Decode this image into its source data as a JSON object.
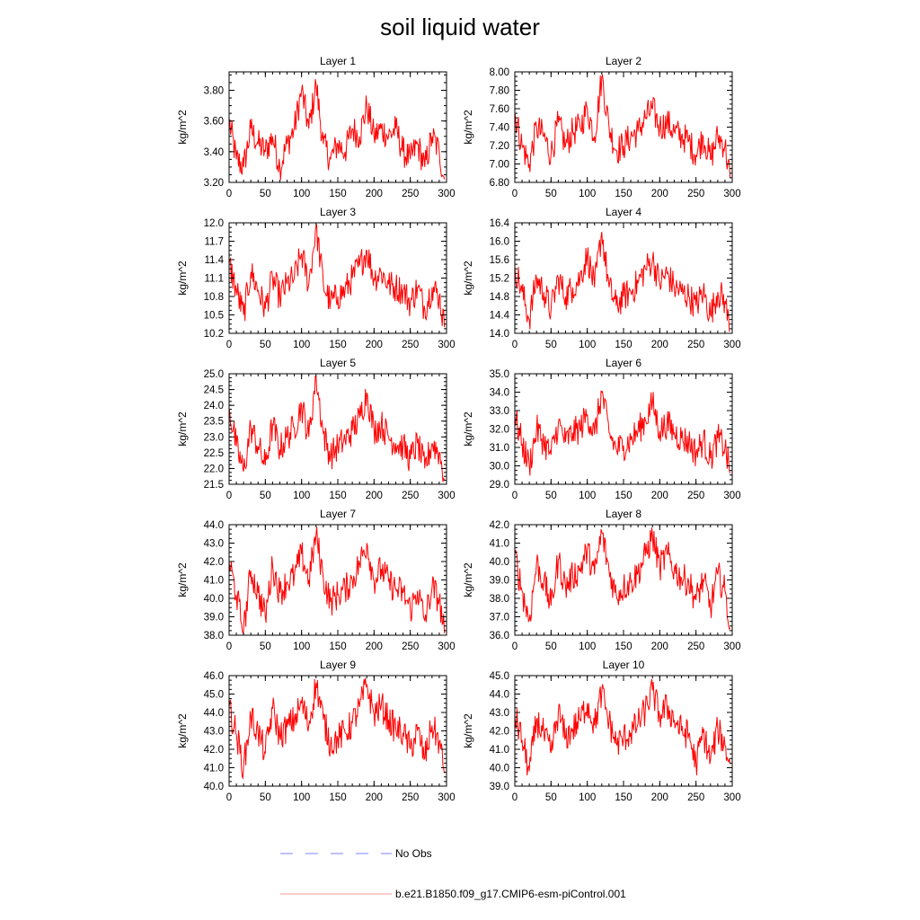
{
  "figure": {
    "title": "soil liquid water",
    "colors": {
      "model_line": "#ff0000",
      "obs_line": "#7f7fff",
      "axes": "#000000"
    }
  },
  "legend": {
    "location": "bottom",
    "entries": [
      {
        "label": "No Obs",
        "style": "dashed",
        "color": "#7f7fff"
      },
      {
        "label": "b.e21.B1850.f09_g17.CMIP6-esm-piControl.001",
        "style": "solid",
        "color": "#ff9999"
      }
    ]
  },
  "chart_data": [
    {
      "type": "line",
      "title": "Layer 1",
      "ylabel": "kg/m^2",
      "xlim": [
        0,
        300
      ],
      "xticks": [
        "0",
        "50",
        "100",
        "150",
        "200",
        "250",
        "300"
      ],
      "ylim": [
        3.2,
        3.92
      ],
      "yticks": [
        "3.20",
        "3.40",
        "3.60",
        "3.80"
      ],
      "ytick_values": [
        3.2,
        3.4,
        3.6,
        3.8
      ],
      "series": [
        {
          "name": "b.e21.B1850.f09_g17.CMIP6-esm-piControl.001",
          "color": "#ff0000",
          "x": [
            0,
            10,
            20,
            30,
            40,
            50,
            60,
            70,
            80,
            90,
            100,
            110,
            120,
            130,
            140,
            150,
            160,
            170,
            180,
            190,
            200,
            210,
            220,
            230,
            240,
            250,
            260,
            270,
            280,
            290,
            297
          ],
          "y": [
            3.6,
            3.35,
            3.3,
            3.55,
            3.45,
            3.4,
            3.5,
            3.3,
            3.45,
            3.55,
            3.8,
            3.55,
            3.84,
            3.45,
            3.35,
            3.45,
            3.4,
            3.55,
            3.5,
            3.7,
            3.5,
            3.55,
            3.5,
            3.55,
            3.4,
            3.35,
            3.45,
            3.3,
            3.5,
            3.4,
            3.22
          ]
        }
      ]
    },
    {
      "type": "line",
      "title": "Layer 2",
      "ylabel": "kg/m^2",
      "xlim": [
        0,
        300
      ],
      "xticks": [
        "0",
        "50",
        "100",
        "150",
        "200",
        "250",
        "300"
      ],
      "ylim": [
        6.8,
        8.0
      ],
      "yticks": [
        "6.80",
        "7.00",
        "7.20",
        "7.40",
        "7.60",
        "7.80",
        "8.00"
      ],
      "ytick_values": [
        6.8,
        7.0,
        7.2,
        7.4,
        7.6,
        7.8,
        8.0
      ],
      "series": [
        {
          "name": "b.e21.B1850.f09_g17.CMIP6-esm-piControl.001",
          "color": "#ff0000",
          "x": [
            0,
            10,
            20,
            30,
            40,
            50,
            60,
            70,
            80,
            90,
            100,
            110,
            120,
            130,
            140,
            150,
            160,
            170,
            180,
            190,
            200,
            210,
            220,
            230,
            240,
            250,
            260,
            270,
            280,
            290,
            297
          ],
          "y": [
            7.55,
            7.2,
            7.0,
            7.4,
            7.3,
            7.1,
            7.45,
            7.2,
            7.35,
            7.4,
            7.6,
            7.3,
            7.95,
            7.4,
            7.15,
            7.2,
            7.3,
            7.35,
            7.5,
            7.6,
            7.4,
            7.45,
            7.35,
            7.3,
            7.25,
            7.1,
            7.3,
            7.05,
            7.3,
            7.2,
            6.85
          ]
        }
      ]
    },
    {
      "type": "line",
      "title": "Layer 3",
      "ylabel": "kg/m^2",
      "xlim": [
        0,
        300
      ],
      "xticks": [
        "0",
        "50",
        "100",
        "150",
        "200",
        "250",
        "300"
      ],
      "ylim": [
        10.2,
        12.0
      ],
      "yticks": [
        "10.2",
        "10.5",
        "10.8",
        "11.1",
        "11.4",
        "11.7",
        "12.0"
      ],
      "ytick_values": [
        10.2,
        10.5,
        10.8,
        11.1,
        11.4,
        11.7,
        12.0
      ],
      "series": [
        {
          "name": "b.e21.B1850.f09_g17.CMIP6-esm-piControl.001",
          "color": "#ff0000",
          "x": [
            0,
            10,
            20,
            30,
            40,
            50,
            60,
            70,
            80,
            90,
            100,
            110,
            120,
            130,
            140,
            150,
            160,
            170,
            180,
            190,
            200,
            210,
            220,
            230,
            240,
            250,
            260,
            270,
            280,
            290,
            297
          ],
          "y": [
            11.35,
            10.9,
            10.5,
            11.2,
            10.9,
            10.6,
            11.1,
            10.8,
            11.0,
            11.1,
            11.5,
            11.0,
            11.95,
            11.0,
            10.7,
            10.8,
            10.9,
            11.1,
            11.3,
            11.55,
            11.1,
            11.2,
            11.0,
            10.95,
            10.9,
            10.7,
            10.95,
            10.6,
            10.95,
            10.8,
            10.3
          ]
        }
      ]
    },
    {
      "type": "line",
      "title": "Layer 4",
      "ylabel": "kg/m^2",
      "xlim": [
        0,
        300
      ],
      "xticks": [
        "0",
        "50",
        "100",
        "150",
        "200",
        "250",
        "300"
      ],
      "ylim": [
        14.0,
        16.4
      ],
      "yticks": [
        "14.0",
        "14.4",
        "14.8",
        "15.2",
        "15.6",
        "16.0",
        "16.4"
      ],
      "ytick_values": [
        14.0,
        14.4,
        14.8,
        15.2,
        15.6,
        16.0,
        16.4
      ],
      "series": [
        {
          "name": "b.e21.B1850.f09_g17.CMIP6-esm-piControl.001",
          "color": "#ff0000",
          "x": [
            0,
            10,
            20,
            30,
            40,
            50,
            60,
            70,
            80,
            90,
            100,
            110,
            120,
            130,
            140,
            150,
            160,
            170,
            180,
            190,
            200,
            210,
            220,
            230,
            240,
            250,
            260,
            270,
            280,
            290,
            297
          ],
          "y": [
            15.45,
            14.9,
            14.3,
            15.2,
            14.9,
            14.5,
            15.2,
            14.8,
            15.0,
            15.2,
            15.7,
            15.0,
            16.2,
            15.0,
            14.6,
            14.8,
            14.9,
            15.1,
            15.4,
            15.6,
            15.1,
            15.3,
            15.0,
            14.9,
            14.8,
            14.6,
            14.9,
            14.4,
            14.9,
            14.7,
            14.05
          ]
        }
      ]
    },
    {
      "type": "line",
      "title": "Layer 5",
      "ylabel": "kg/m^2",
      "xlim": [
        0,
        300
      ],
      "xticks": [
        "0",
        "50",
        "100",
        "150",
        "200",
        "250",
        "300"
      ],
      "ylim": [
        21.5,
        25.0
      ],
      "yticks": [
        "21.5",
        "22.0",
        "22.5",
        "23.0",
        "23.5",
        "24.0",
        "24.5",
        "25.0"
      ],
      "ytick_values": [
        21.5,
        22.0,
        22.5,
        23.0,
        23.5,
        24.0,
        24.5,
        25.0
      ],
      "series": [
        {
          "name": "b.e21.B1850.f09_g17.CMIP6-esm-piControl.001",
          "color": "#ff0000",
          "x": [
            0,
            10,
            20,
            30,
            40,
            50,
            60,
            70,
            80,
            90,
            100,
            110,
            120,
            130,
            140,
            150,
            160,
            170,
            180,
            190,
            200,
            210,
            220,
            230,
            240,
            250,
            260,
            270,
            280,
            290,
            297
          ],
          "y": [
            23.9,
            22.7,
            21.9,
            23.3,
            22.7,
            22.1,
            23.4,
            22.6,
            23.0,
            23.3,
            24.0,
            23.0,
            24.95,
            23.1,
            22.4,
            22.7,
            22.9,
            23.2,
            23.6,
            24.4,
            23.2,
            23.4,
            23.0,
            22.8,
            22.7,
            22.3,
            22.8,
            22.0,
            22.8,
            22.5,
            21.65
          ]
        }
      ]
    },
    {
      "type": "line",
      "title": "Layer 6",
      "ylabel": "kg/m^2",
      "xlim": [
        0,
        300
      ],
      "xticks": [
        "0",
        "50",
        "100",
        "150",
        "200",
        "250",
        "300"
      ],
      "ylim": [
        29.0,
        35.0
      ],
      "yticks": [
        "29.0",
        "30.0",
        "31.0",
        "32.0",
        "33.0",
        "34.0",
        "35.0"
      ],
      "ytick_values": [
        29.0,
        30.0,
        31.0,
        32.0,
        33.0,
        34.0,
        35.0
      ],
      "series": [
        {
          "name": "b.e21.B1850.f09_g17.CMIP6-esm-piControl.001",
          "color": "#ff0000",
          "x": [
            0,
            10,
            20,
            30,
            40,
            50,
            60,
            70,
            80,
            90,
            100,
            110,
            120,
            130,
            140,
            150,
            160,
            170,
            180,
            190,
            200,
            210,
            220,
            230,
            240,
            250,
            260,
            270,
            280,
            290,
            297
          ],
          "y": [
            32.7,
            31.2,
            30.0,
            32.0,
            31.3,
            30.6,
            32.3,
            31.3,
            31.8,
            32.0,
            32.8,
            31.7,
            34.0,
            31.8,
            30.9,
            31.1,
            31.4,
            31.9,
            32.5,
            33.4,
            31.9,
            32.3,
            31.8,
            31.5,
            31.3,
            30.7,
            31.4,
            30.4,
            31.5,
            31.0,
            29.6
          ]
        }
      ]
    },
    {
      "type": "line",
      "title": "Layer 7",
      "ylabel": "kg/m^2",
      "xlim": [
        0,
        300
      ],
      "xticks": [
        "0",
        "50",
        "100",
        "150",
        "200",
        "250",
        "300"
      ],
      "ylim": [
        38.0,
        44.0
      ],
      "yticks": [
        "38.0",
        "39.0",
        "40.0",
        "41.0",
        "42.0",
        "43.0",
        "44.0"
      ],
      "ytick_values": [
        38.0,
        39.0,
        40.0,
        41.0,
        42.0,
        43.0,
        44.0
      ],
      "series": [
        {
          "name": "b.e21.B1850.f09_g17.CMIP6-esm-piControl.001",
          "color": "#ff0000",
          "x": [
            0,
            10,
            20,
            30,
            40,
            50,
            60,
            70,
            80,
            90,
            100,
            110,
            120,
            130,
            140,
            150,
            160,
            170,
            180,
            190,
            200,
            210,
            220,
            230,
            240,
            250,
            260,
            270,
            280,
            290,
            297
          ],
          "y": [
            42.0,
            40.2,
            38.2,
            41.5,
            40.3,
            39.0,
            41.8,
            40.3,
            40.9,
            41.2,
            42.4,
            41.0,
            43.5,
            41.1,
            39.8,
            40.2,
            40.5,
            41.0,
            41.9,
            43.0,
            41.0,
            41.6,
            40.9,
            40.5,
            40.3,
            39.4,
            40.4,
            38.8,
            40.6,
            39.9,
            38.1
          ]
        }
      ]
    },
    {
      "type": "line",
      "title": "Layer 8",
      "ylabel": "kg/m^2",
      "xlim": [
        0,
        300
      ],
      "xticks": [
        "0",
        "50",
        "100",
        "150",
        "200",
        "250",
        "300"
      ],
      "ylim": [
        36.0,
        42.0
      ],
      "yticks": [
        "36.0",
        "37.0",
        "38.0",
        "39.0",
        "40.0",
        "41.0",
        "42.0"
      ],
      "ytick_values": [
        36.0,
        37.0,
        38.0,
        39.0,
        40.0,
        41.0,
        42.0
      ],
      "series": [
        {
          "name": "b.e21.B1850.f09_g17.CMIP6-esm-piControl.001",
          "color": "#ff0000",
          "x": [
            0,
            10,
            20,
            30,
            40,
            50,
            60,
            70,
            80,
            90,
            100,
            110,
            120,
            130,
            140,
            150,
            160,
            170,
            180,
            190,
            200,
            210,
            220,
            230,
            240,
            250,
            260,
            270,
            280,
            290,
            297
          ],
          "y": [
            40.4,
            38.4,
            36.8,
            39.9,
            38.9,
            37.6,
            40.1,
            38.6,
            39.2,
            39.6,
            40.6,
            39.3,
            41.6,
            39.5,
            38.2,
            38.6,
            38.9,
            39.4,
            40.3,
            41.4,
            39.7,
            40.4,
            39.6,
            39.1,
            38.9,
            37.9,
            39.0,
            37.5,
            39.3,
            38.4,
            36.4
          ]
        }
      ]
    },
    {
      "type": "line",
      "title": "Layer 9",
      "ylabel": "kg/m^2",
      "xlim": [
        0,
        300
      ],
      "xticks": [
        "0",
        "50",
        "100",
        "150",
        "200",
        "250",
        "300"
      ],
      "ylim": [
        40.0,
        46.0
      ],
      "yticks": [
        "40.0",
        "41.0",
        "42.0",
        "43.0",
        "44.0",
        "45.0",
        "46.0"
      ],
      "ytick_values": [
        40.0,
        41.0,
        42.0,
        43.0,
        44.0,
        45.0,
        46.0
      ],
      "series": [
        {
          "name": "b.e21.B1850.f09_g17.CMIP6-esm-piControl.001",
          "color": "#ff0000",
          "x": [
            0,
            10,
            20,
            30,
            40,
            50,
            60,
            70,
            80,
            90,
            100,
            110,
            120,
            130,
            140,
            150,
            160,
            170,
            180,
            190,
            200,
            210,
            220,
            230,
            240,
            250,
            260,
            270,
            280,
            290,
            297
          ],
          "y": [
            44.3,
            42.8,
            41.0,
            43.8,
            42.9,
            41.8,
            44.2,
            42.7,
            43.2,
            43.6,
            44.5,
            43.3,
            45.6,
            43.6,
            42.3,
            42.6,
            42.9,
            43.4,
            44.3,
            45.5,
            43.9,
            44.4,
            43.6,
            43.1,
            42.9,
            42.0,
            43.0,
            41.5,
            43.3,
            42.4,
            40.7
          ]
        }
      ]
    },
    {
      "type": "line",
      "title": "Layer 10",
      "ylabel": "kg/m^2",
      "xlim": [
        0,
        300
      ],
      "xticks": [
        "0",
        "50",
        "100",
        "150",
        "200",
        "250",
        "300"
      ],
      "ylim": [
        39.0,
        45.0
      ],
      "yticks": [
        "39.0",
        "40.0",
        "41.0",
        "42.0",
        "43.0",
        "44.0",
        "45.0"
      ],
      "ytick_values": [
        39.0,
        40.0,
        41.0,
        42.0,
        43.0,
        44.0,
        45.0
      ],
      "series": [
        {
          "name": "b.e21.B1850.f09_g17.CMIP6-esm-piControl.001",
          "color": "#ff0000",
          "x": [
            0,
            10,
            20,
            30,
            40,
            50,
            60,
            70,
            80,
            90,
            100,
            110,
            120,
            130,
            140,
            150,
            160,
            170,
            180,
            190,
            200,
            210,
            220,
            230,
            240,
            250,
            260,
            270,
            280,
            290,
            297
          ],
          "y": [
            42.8,
            41.5,
            39.8,
            42.6,
            41.8,
            40.8,
            43.0,
            41.6,
            42.1,
            42.6,
            43.5,
            42.3,
            44.1,
            42.5,
            41.3,
            41.6,
            41.9,
            42.4,
            43.1,
            44.2,
            42.8,
            43.3,
            42.6,
            42.0,
            41.8,
            40.2,
            41.9,
            40.4,
            42.1,
            41.2,
            40.2
          ]
        }
      ]
    }
  ]
}
